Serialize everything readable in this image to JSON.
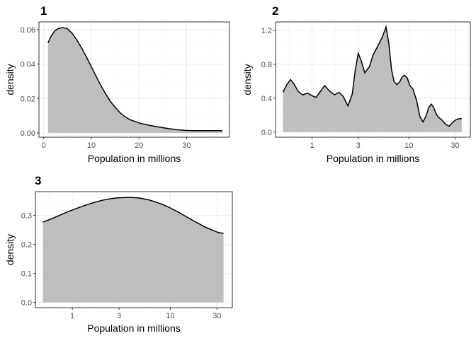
{
  "chart_data": [
    {
      "panel_label": "1",
      "type": "area",
      "xlabel": "Population in millions",
      "ylabel": "density",
      "x_scale": "linear",
      "xlim": [
        -1,
        39
      ],
      "ylim": [
        -0.0025,
        0.0645
      ],
      "x_ticks": [
        0,
        10,
        20,
        30
      ],
      "x_tick_labels": [
        "0",
        "10",
        "20",
        "30"
      ],
      "y_ticks": [
        0,
        0.02,
        0.04,
        0.06
      ],
      "y_tick_labels": [
        "0.00",
        "0.02",
        "0.04",
        "0.06"
      ],
      "grid": true,
      "fill_color": "#bebebe",
      "line_color": "#000000",
      "x": [
        0.9,
        1.5,
        2.3,
        3.0,
        4.0,
        5.0,
        6.0,
        7.0,
        8.0,
        9.0,
        10.0,
        11.0,
        12.0,
        13.0,
        14.0,
        15.0,
        16.0,
        17.0,
        18.0,
        20.0,
        22.0,
        24.0,
        26.0,
        28.0,
        30.0,
        32.0,
        34.0,
        37.5
      ],
      "y": [
        0.0523,
        0.056,
        0.0592,
        0.0606,
        0.0612,
        0.0605,
        0.0578,
        0.0538,
        0.0492,
        0.0439,
        0.0385,
        0.0329,
        0.0276,
        0.0227,
        0.0183,
        0.0148,
        0.0118,
        0.0095,
        0.0078,
        0.0058,
        0.0045,
        0.0035,
        0.0026,
        0.0018,
        0.0014,
        0.0013,
        0.0013,
        0.0013
      ]
    },
    {
      "panel_label": "2",
      "type": "area",
      "xlabel": "Population in millions",
      "ylabel": "density",
      "x_scale": "log10",
      "xlim": [
        0.42,
        43
      ],
      "ylim": [
        -0.06,
        1.3
      ],
      "x_ticks": [
        1,
        3,
        10,
        30
      ],
      "x_tick_labels": [
        "1",
        "3",
        "10",
        "30"
      ],
      "y_ticks": [
        0,
        0.4,
        0.8,
        1.2
      ],
      "y_tick_labels": [
        "0.0",
        "0.4",
        "0.8",
        "1.2"
      ],
      "grid": true,
      "fill_color": "#bebebe",
      "line_color": "#000000",
      "x": [
        0.5,
        0.55,
        0.6,
        0.65,
        0.72,
        0.8,
        0.9,
        1.0,
        1.1,
        1.2,
        1.35,
        1.5,
        1.7,
        1.9,
        2.1,
        2.35,
        2.6,
        2.8,
        3.0,
        3.2,
        3.5,
        3.9,
        4.3,
        4.8,
        5.3,
        5.8,
        6.2,
        6.6,
        7.0,
        7.5,
        8.0,
        8.5,
        9.0,
        9.6,
        10.2,
        11.0,
        12.0,
        13.0,
        14.0,
        15.0,
        16.0,
        17.0,
        18.0,
        19.0,
        20.0,
        22.0,
        24.0,
        26.0,
        28.0,
        30.0,
        32.0,
        35.0
      ],
      "y": [
        0.47,
        0.56,
        0.62,
        0.57,
        0.48,
        0.44,
        0.46,
        0.43,
        0.41,
        0.47,
        0.55,
        0.49,
        0.44,
        0.47,
        0.42,
        0.31,
        0.45,
        0.74,
        0.93,
        0.85,
        0.7,
        0.77,
        0.92,
        1.02,
        1.12,
        1.24,
        1.05,
        0.74,
        0.6,
        0.56,
        0.59,
        0.65,
        0.67,
        0.64,
        0.55,
        0.51,
        0.37,
        0.18,
        0.12,
        0.19,
        0.29,
        0.33,
        0.29,
        0.22,
        0.18,
        0.14,
        0.09,
        0.07,
        0.11,
        0.14,
        0.155,
        0.16
      ]
    },
    {
      "panel_label": "3",
      "type": "area",
      "xlabel": "Population in millions",
      "ylabel": "density",
      "x_scale": "log10",
      "xlim": [
        0.42,
        43
      ],
      "ylim": [
        -0.018,
        0.382
      ],
      "x_ticks": [
        1,
        3,
        10,
        30
      ],
      "x_tick_labels": [
        "1",
        "3",
        "10",
        "30"
      ],
      "y_ticks": [
        0,
        0.1,
        0.2,
        0.3
      ],
      "y_tick_labels": [
        "0.0",
        "0.1",
        "0.2",
        "0.3"
      ],
      "grid": true,
      "fill_color": "#bebebe",
      "line_color": "#000000",
      "x": [
        0.5,
        0.6,
        0.75,
        0.9,
        1.1,
        1.3,
        1.6,
        2.0,
        2.5,
        3.0,
        3.5,
        4.0,
        4.5,
        5.0,
        6.0,
        7.0,
        8.0,
        9.0,
        10.0,
        12.0,
        14.0,
        16.0,
        18.0,
        20.0,
        22.0,
        25.0,
        28.0,
        31.0,
        35.0
      ],
      "y": [
        0.277,
        0.287,
        0.301,
        0.313,
        0.324,
        0.333,
        0.343,
        0.352,
        0.358,
        0.361,
        0.362,
        0.362,
        0.361,
        0.359,
        0.354,
        0.347,
        0.34,
        0.333,
        0.326,
        0.312,
        0.299,
        0.288,
        0.278,
        0.27,
        0.262,
        0.254,
        0.247,
        0.241,
        0.238
      ]
    }
  ]
}
